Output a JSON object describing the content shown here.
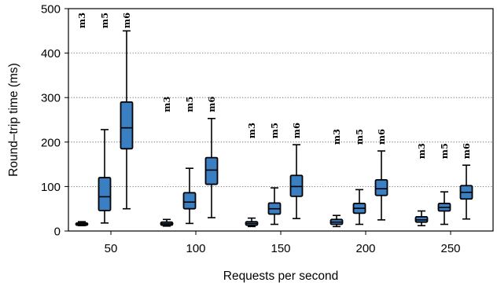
{
  "chart_data": {
    "type": "box",
    "title": "",
    "xlabel": "Requests per second",
    "ylabel": "Round–trip time (ms)",
    "ylim": [
      0,
      500
    ],
    "yticks": [
      0,
      100,
      200,
      300,
      400,
      500
    ],
    "grid": "horizontal dotted",
    "categories": [
      "50",
      "100",
      "150",
      "200",
      "250"
    ],
    "series": [
      {
        "name": "m3",
        "color": "#3a7fc1",
        "boxes": [
          {
            "whisker_low": 12,
            "q1": 13,
            "median": 15,
            "q3": 18,
            "whisker_high": 21
          },
          {
            "whisker_low": 11,
            "q1": 13,
            "median": 16,
            "q3": 20,
            "whisker_high": 26
          },
          {
            "whisker_low": 10,
            "q1": 13,
            "median": 17,
            "q3": 21,
            "whisker_high": 29
          },
          {
            "whisker_low": 10,
            "q1": 15,
            "median": 20,
            "q3": 26,
            "whisker_high": 35
          },
          {
            "whisker_low": 12,
            "q1": 20,
            "median": 25,
            "q3": 32,
            "whisker_high": 45
          }
        ]
      },
      {
        "name": "m5",
        "color": "#3a7fc1",
        "boxes": [
          {
            "whisker_low": 18,
            "q1": 46,
            "median": 77,
            "q3": 120,
            "whisker_high": 228
          },
          {
            "whisker_low": 17,
            "q1": 50,
            "median": 65,
            "q3": 86,
            "whisker_high": 141
          },
          {
            "whisker_low": 15,
            "q1": 38,
            "median": 50,
            "q3": 63,
            "whisker_high": 97
          },
          {
            "whisker_low": 15,
            "q1": 40,
            "median": 51,
            "q3": 62,
            "whisker_high": 93
          },
          {
            "whisker_low": 15,
            "q1": 45,
            "median": 53,
            "q3": 62,
            "whisker_high": 88
          }
        ]
      },
      {
        "name": "m6",
        "color": "#3a7fc1",
        "boxes": [
          {
            "whisker_low": 50,
            "q1": 185,
            "median": 232,
            "q3": 290,
            "whisker_high": 450
          },
          {
            "whisker_low": 30,
            "q1": 105,
            "median": 137,
            "q3": 165,
            "whisker_high": 253
          },
          {
            "whisker_low": 28,
            "q1": 78,
            "median": 100,
            "q3": 125,
            "whisker_high": 194
          },
          {
            "whisker_low": 25,
            "q1": 80,
            "median": 95,
            "q3": 115,
            "whisker_high": 180
          },
          {
            "whisker_low": 27,
            "q1": 72,
            "median": 87,
            "q3": 102,
            "whisker_high": 148
          }
        ]
      }
    ],
    "box_labels": [
      {
        "category": "50",
        "labels": [
          "m3",
          "m5",
          "m6"
        ]
      },
      {
        "category": "100",
        "labels": [
          "m3",
          "m5",
          "m6"
        ]
      },
      {
        "category": "150",
        "labels": [
          "m3",
          "m5",
          "m6"
        ]
      },
      {
        "category": "200",
        "labels": [
          "m3",
          "m5",
          "m6"
        ]
      },
      {
        "category": "250",
        "labels": [
          "m3",
          "m5",
          "m6"
        ]
      }
    ]
  }
}
